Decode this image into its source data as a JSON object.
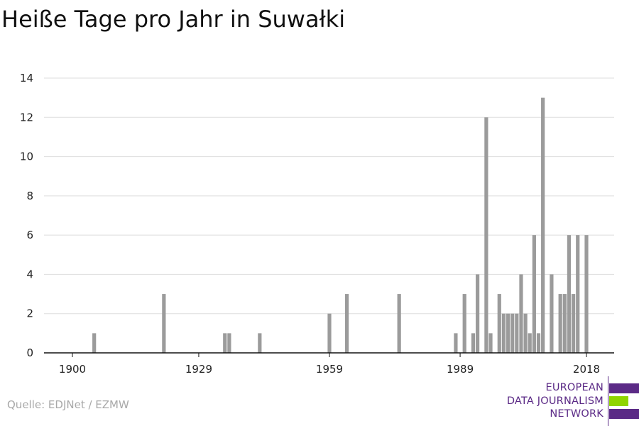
{
  "chart_data": {
    "type": "bar",
    "title": "Heiße Tage pro Jahr in Suwałki",
    "xlabel": "",
    "ylabel": "",
    "xlim": [
      1895,
      2023
    ],
    "ylim": [
      0,
      14
    ],
    "x_ticks": [
      1900,
      1929,
      1959,
      1989,
      2018
    ],
    "y_ticks": [
      0,
      2,
      4,
      6,
      8,
      10,
      12,
      14
    ],
    "grid": true,
    "x": [
      1905,
      1921,
      1935,
      1936,
      1943,
      1959,
      1963,
      1975,
      1988,
      1990,
      1992,
      1993,
      1995,
      1996,
      1998,
      1999,
      2000,
      2001,
      2002,
      2003,
      2004,
      2005,
      2006,
      2007,
      2008,
      2010,
      2012,
      2013,
      2014,
      2015,
      2016,
      2018
    ],
    "values": [
      1,
      3,
      1,
      1,
      1,
      2,
      3,
      3,
      1,
      3,
      1,
      4,
      12,
      1,
      3,
      2,
      2,
      2,
      2,
      4,
      2,
      1,
      6,
      1,
      13,
      4,
      3,
      3,
      6,
      3,
      6,
      6
    ],
    "bar_color": "#9b9b9b",
    "grid_color": "#dddddd"
  },
  "source": "Quelle: EDJNet / EZMW",
  "logo": {
    "lines": [
      "EUROPEAN",
      "DATA JOURNALISM",
      "NETWORK"
    ],
    "colors": {
      "purple": "#5b2a86",
      "green": "#8fd400"
    }
  }
}
